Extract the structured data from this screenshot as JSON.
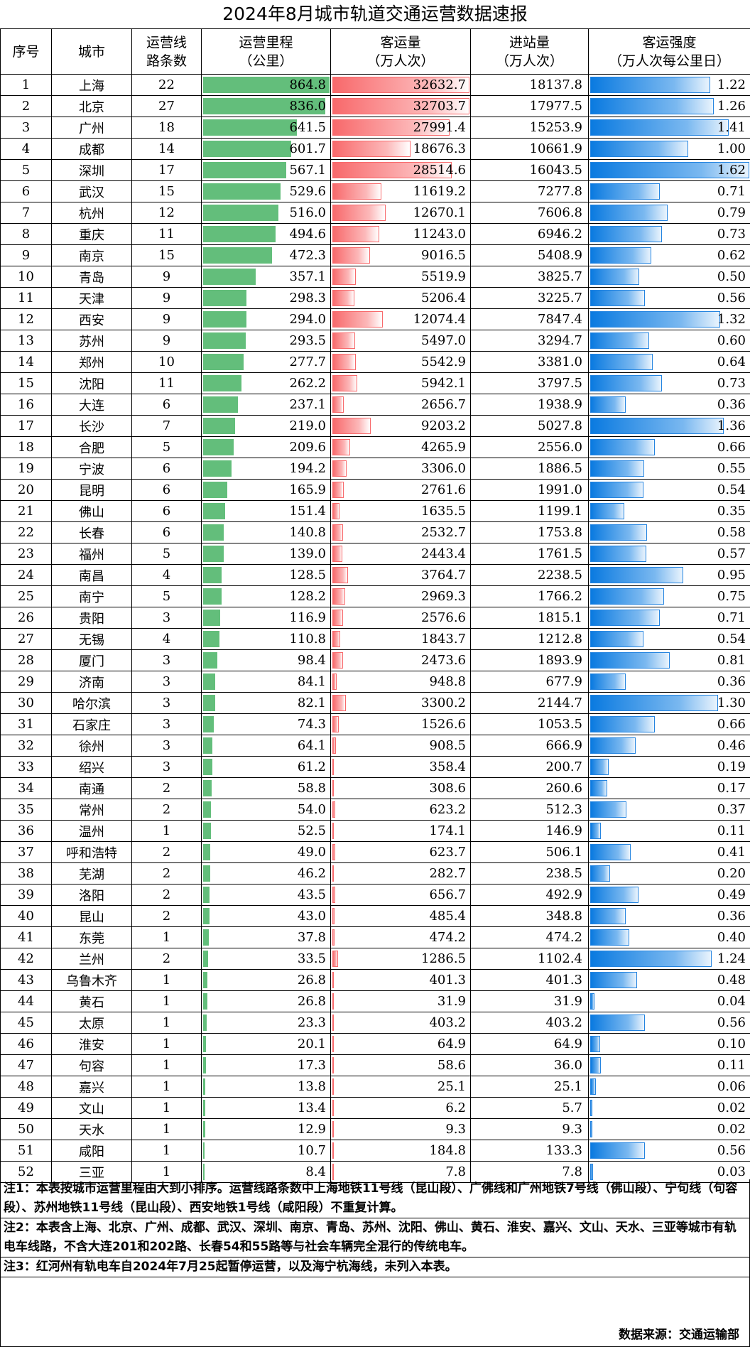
{
  "title": "2024年8月城市轨道交通运营数据速报",
  "headers": {
    "index": "序号",
    "city": "城市",
    "lines": [
      "运营线",
      "路条数"
    ],
    "length": [
      "运营里程",
      "（公里）"
    ],
    "passengers": [
      "客运量",
      "（万人次）"
    ],
    "entries": [
      "进站量",
      "（万人次）"
    ],
    "intensity": [
      "客运强度",
      "（万人次每公里日）"
    ]
  },
  "colors": {
    "length_bar": "#63be7b",
    "passenger_bar": "#f8696b",
    "intensity_bar": "#0a7ae0"
  },
  "rows": [
    {
      "no": "1",
      "city": "上海",
      "lines": "22",
      "length": "864.8",
      "passengers": "32632.7",
      "entries": "18137.8",
      "intensity": "1.22"
    },
    {
      "no": "2",
      "city": "北京",
      "lines": "27",
      "length": "836.0",
      "passengers": "32703.7",
      "entries": "17977.5",
      "intensity": "1.26"
    },
    {
      "no": "3",
      "city": "广州",
      "lines": "18",
      "length": "641.5",
      "passengers": "27991.4",
      "entries": "15253.9",
      "intensity": "1.41"
    },
    {
      "no": "4",
      "city": "成都",
      "lines": "14",
      "length": "601.7",
      "passengers": "18676.3",
      "entries": "10661.9",
      "intensity": "1.00"
    },
    {
      "no": "5",
      "city": "深圳",
      "lines": "17",
      "length": "567.1",
      "passengers": "28514.6",
      "entries": "16043.5",
      "intensity": "1.62"
    },
    {
      "no": "6",
      "city": "武汉",
      "lines": "15",
      "length": "529.6",
      "passengers": "11619.2",
      "entries": "7277.8",
      "intensity": "0.71"
    },
    {
      "no": "7",
      "city": "杭州",
      "lines": "12",
      "length": "516.0",
      "passengers": "12670.1",
      "entries": "7606.8",
      "intensity": "0.79"
    },
    {
      "no": "8",
      "city": "重庆",
      "lines": "11",
      "length": "494.6",
      "passengers": "11243.0",
      "entries": "6946.2",
      "intensity": "0.73"
    },
    {
      "no": "9",
      "city": "南京",
      "lines": "15",
      "length": "472.3",
      "passengers": "9016.5",
      "entries": "5408.9",
      "intensity": "0.62"
    },
    {
      "no": "10",
      "city": "青岛",
      "lines": "9",
      "length": "357.1",
      "passengers": "5519.9",
      "entries": "3825.7",
      "intensity": "0.50"
    },
    {
      "no": "11",
      "city": "天津",
      "lines": "9",
      "length": "298.3",
      "passengers": "5206.4",
      "entries": "3225.7",
      "intensity": "0.56"
    },
    {
      "no": "12",
      "city": "西安",
      "lines": "9",
      "length": "294.0",
      "passengers": "12074.4",
      "entries": "7847.4",
      "intensity": "1.32"
    },
    {
      "no": "13",
      "city": "苏州",
      "lines": "9",
      "length": "293.5",
      "passengers": "5497.0",
      "entries": "3294.7",
      "intensity": "0.60"
    },
    {
      "no": "14",
      "city": "郑州",
      "lines": "10",
      "length": "277.7",
      "passengers": "5542.9",
      "entries": "3381.0",
      "intensity": "0.64"
    },
    {
      "no": "15",
      "city": "沈阳",
      "lines": "11",
      "length": "262.2",
      "passengers": "5942.1",
      "entries": "3797.5",
      "intensity": "0.73"
    },
    {
      "no": "16",
      "city": "大连",
      "lines": "6",
      "length": "237.1",
      "passengers": "2656.7",
      "entries": "1938.9",
      "intensity": "0.36"
    },
    {
      "no": "17",
      "city": "长沙",
      "lines": "7",
      "length": "219.0",
      "passengers": "9203.2",
      "entries": "5027.8",
      "intensity": "1.36"
    },
    {
      "no": "18",
      "city": "合肥",
      "lines": "5",
      "length": "209.6",
      "passengers": "4265.9",
      "entries": "2556.0",
      "intensity": "0.66"
    },
    {
      "no": "19",
      "city": "宁波",
      "lines": "6",
      "length": "194.2",
      "passengers": "3306.0",
      "entries": "1886.5",
      "intensity": "0.55"
    },
    {
      "no": "20",
      "city": "昆明",
      "lines": "6",
      "length": "165.9",
      "passengers": "2761.6",
      "entries": "1991.0",
      "intensity": "0.54"
    },
    {
      "no": "21",
      "city": "佛山",
      "lines": "6",
      "length": "151.4",
      "passengers": "1635.5",
      "entries": "1199.1",
      "intensity": "0.35"
    },
    {
      "no": "22",
      "city": "长春",
      "lines": "6",
      "length": "140.8",
      "passengers": "2532.7",
      "entries": "1753.8",
      "intensity": "0.58"
    },
    {
      "no": "23",
      "city": "福州",
      "lines": "5",
      "length": "139.0",
      "passengers": "2443.4",
      "entries": "1761.5",
      "intensity": "0.57"
    },
    {
      "no": "24",
      "city": "南昌",
      "lines": "4",
      "length": "128.5",
      "passengers": "3764.7",
      "entries": "2238.5",
      "intensity": "0.95"
    },
    {
      "no": "25",
      "city": "南宁",
      "lines": "5",
      "length": "128.2",
      "passengers": "2969.3",
      "entries": "1766.2",
      "intensity": "0.75"
    },
    {
      "no": "26",
      "city": "贵阳",
      "lines": "3",
      "length": "116.9",
      "passengers": "2576.6",
      "entries": "1815.1",
      "intensity": "0.71"
    },
    {
      "no": "27",
      "city": "无锡",
      "lines": "4",
      "length": "110.8",
      "passengers": "1843.7",
      "entries": "1212.8",
      "intensity": "0.54"
    },
    {
      "no": "28",
      "city": "厦门",
      "lines": "3",
      "length": "98.4",
      "passengers": "2473.6",
      "entries": "1893.9",
      "intensity": "0.81"
    },
    {
      "no": "29",
      "city": "济南",
      "lines": "3",
      "length": "84.1",
      "passengers": "948.8",
      "entries": "677.9",
      "intensity": "0.36"
    },
    {
      "no": "30",
      "city": "哈尔滨",
      "lines": "3",
      "length": "82.1",
      "passengers": "3300.2",
      "entries": "2144.7",
      "intensity": "1.30"
    },
    {
      "no": "31",
      "city": "石家庄",
      "lines": "3",
      "length": "74.3",
      "passengers": "1526.6",
      "entries": "1053.5",
      "intensity": "0.66"
    },
    {
      "no": "32",
      "city": "徐州",
      "lines": "3",
      "length": "64.1",
      "passengers": "908.5",
      "entries": "666.9",
      "intensity": "0.46"
    },
    {
      "no": "33",
      "city": "绍兴",
      "lines": "3",
      "length": "61.2",
      "passengers": "358.4",
      "entries": "200.7",
      "intensity": "0.19"
    },
    {
      "no": "34",
      "city": "南通",
      "lines": "2",
      "length": "58.8",
      "passengers": "308.6",
      "entries": "260.6",
      "intensity": "0.17"
    },
    {
      "no": "35",
      "city": "常州",
      "lines": "2",
      "length": "54.0",
      "passengers": "623.2",
      "entries": "512.3",
      "intensity": "0.37"
    },
    {
      "no": "36",
      "city": "温州",
      "lines": "1",
      "length": "52.5",
      "passengers": "174.1",
      "entries": "146.9",
      "intensity": "0.11"
    },
    {
      "no": "37",
      "city": "呼和浩特",
      "lines": "2",
      "length": "49.0",
      "passengers": "623.7",
      "entries": "506.1",
      "intensity": "0.41"
    },
    {
      "no": "38",
      "city": "芜湖",
      "lines": "2",
      "length": "46.2",
      "passengers": "282.7",
      "entries": "238.5",
      "intensity": "0.20"
    },
    {
      "no": "39",
      "city": "洛阳",
      "lines": "2",
      "length": "43.5",
      "passengers": "656.7",
      "entries": "492.9",
      "intensity": "0.49"
    },
    {
      "no": "40",
      "city": "昆山",
      "lines": "2",
      "length": "43.0",
      "passengers": "485.4",
      "entries": "348.8",
      "intensity": "0.36"
    },
    {
      "no": "41",
      "city": "东莞",
      "lines": "1",
      "length": "37.8",
      "passengers": "474.2",
      "entries": "474.2",
      "intensity": "0.40"
    },
    {
      "no": "42",
      "city": "兰州",
      "lines": "2",
      "length": "33.5",
      "passengers": "1286.5",
      "entries": "1102.4",
      "intensity": "1.24"
    },
    {
      "no": "43",
      "city": "乌鲁木齐",
      "lines": "1",
      "length": "26.8",
      "passengers": "401.3",
      "entries": "401.3",
      "intensity": "0.48"
    },
    {
      "no": "44",
      "city": "黄石",
      "lines": "1",
      "length": "26.8",
      "passengers": "31.9",
      "entries": "31.9",
      "intensity": "0.04"
    },
    {
      "no": "45",
      "city": "太原",
      "lines": "1",
      "length": "23.3",
      "passengers": "403.2",
      "entries": "403.2",
      "intensity": "0.56"
    },
    {
      "no": "46",
      "city": "淮安",
      "lines": "1",
      "length": "20.1",
      "passengers": "64.9",
      "entries": "64.9",
      "intensity": "0.10"
    },
    {
      "no": "47",
      "city": "句容",
      "lines": "1",
      "length": "17.3",
      "passengers": "58.6",
      "entries": "36.0",
      "intensity": "0.11"
    },
    {
      "no": "48",
      "city": "嘉兴",
      "lines": "1",
      "length": "13.8",
      "passengers": "25.1",
      "entries": "25.1",
      "intensity": "0.06"
    },
    {
      "no": "49",
      "city": "文山",
      "lines": "1",
      "length": "13.4",
      "passengers": "6.2",
      "entries": "5.7",
      "intensity": "0.02"
    },
    {
      "no": "50",
      "city": "天水",
      "lines": "1",
      "length": "12.9",
      "passengers": "9.3",
      "entries": "9.3",
      "intensity": "0.02"
    },
    {
      "no": "51",
      "city": "咸阳",
      "lines": "1",
      "length": "10.7",
      "passengers": "184.8",
      "entries": "133.3",
      "intensity": "0.56"
    },
    {
      "no": "52",
      "city": "三亚",
      "lines": "1",
      "length": "8.4",
      "passengers": "7.8",
      "entries": "7.8",
      "intensity": "0.03"
    }
  ],
  "notes": [
    "注1：本表按城市运营里程由大到小排序。运营线路条数中上海地铁11号线（昆山段）、广佛线和广州地铁7号线（佛山段）、宁句线（句容段）、苏州地铁11号线（昆山段）、西安地铁1号线（咸阳段）不重复计算。",
    "注2：本表含上海、北京、广州、成都、武汉、深圳、南京、青岛、苏州、沈阳、佛山、黄石、淮安、嘉兴、文山、天水、三亚等城市有轨电车线路，不含大连201和202路、长春54和55路等与社会车辆完全混行的传统电车。",
    "注3：红河州有轨电车自2024年7月25起暂停运营，以及海宁杭海线，未列入本表。"
  ],
  "source": "数据来源：交通运输部"
}
